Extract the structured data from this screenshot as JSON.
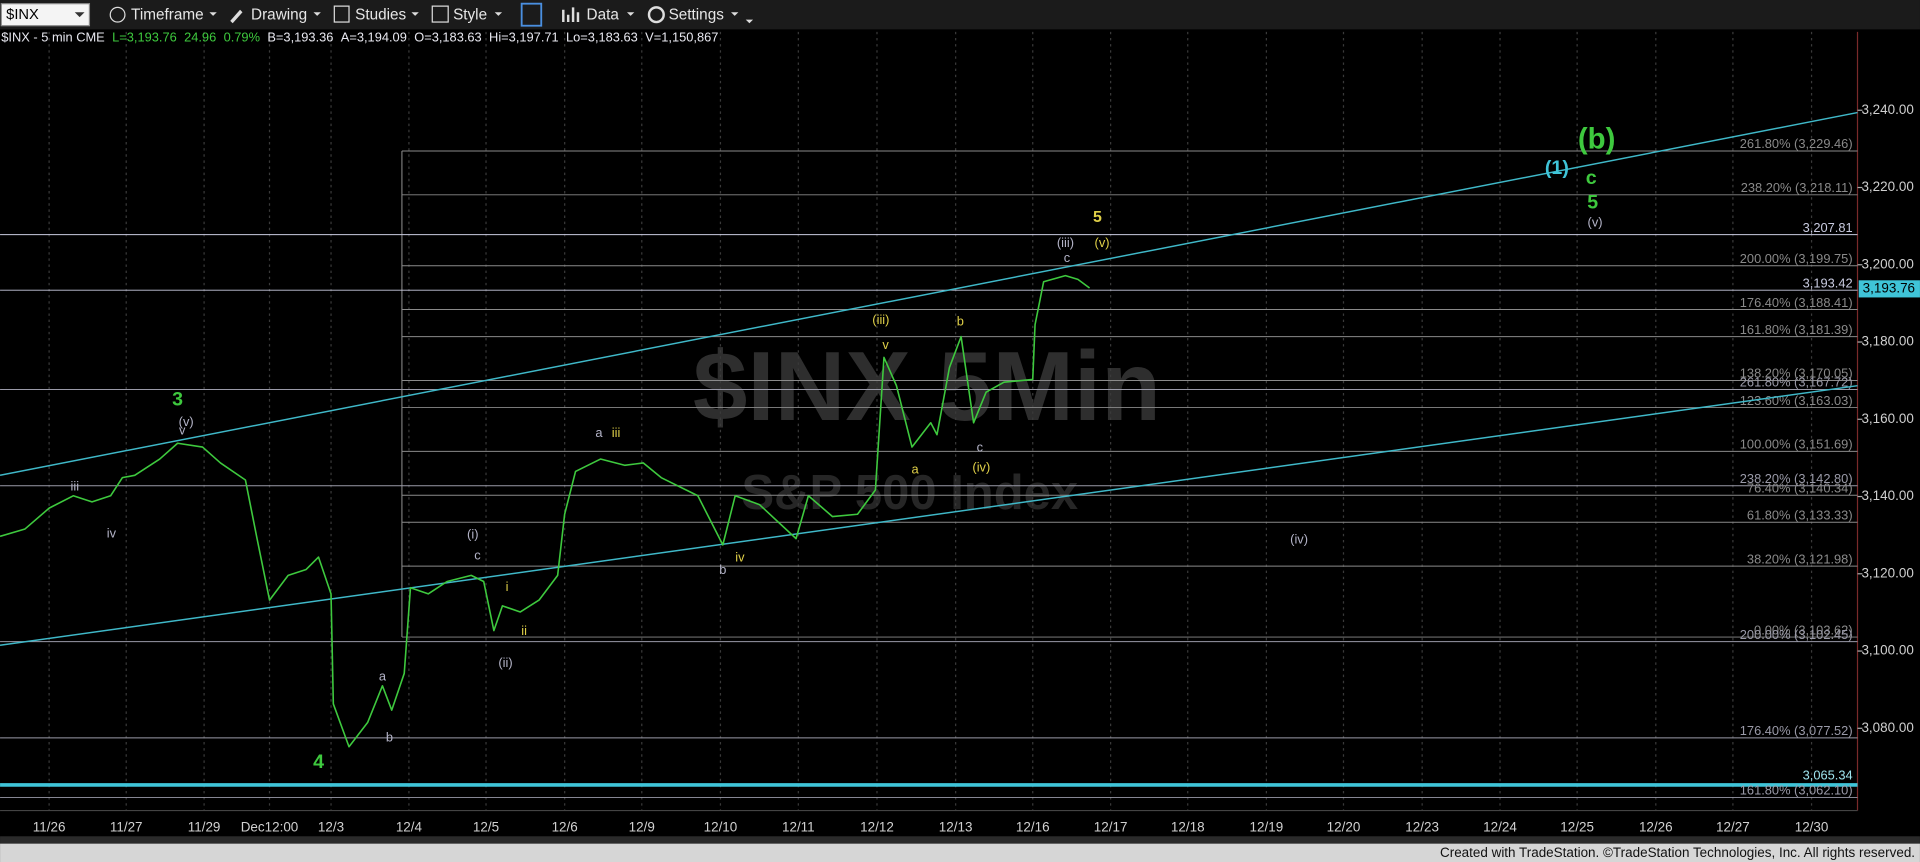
{
  "toolbar": {
    "symbol": "$INX",
    "items": [
      "Timeframe",
      "Drawing",
      "Studies",
      "Style",
      "Data",
      "Settings"
    ]
  },
  "status": [
    {
      "text": "$INX - 5 min CME",
      "color": "#e8e8f0"
    },
    {
      "text": "L=3,193.76",
      "color": "#3ec93e"
    },
    {
      "text": "24.96",
      "color": "#3ec93e"
    },
    {
      "text": "0.79%",
      "color": "#3ec93e"
    },
    {
      "text": "B=3,193.36",
      "color": "#e8e8f0"
    },
    {
      "text": "A=3,194.09",
      "color": "#e8e8f0"
    },
    {
      "text": "O=3,183.63",
      "color": "#e8e8f0"
    },
    {
      "text": "Hi=3,197.71",
      "color": "#e8e8f0"
    },
    {
      "text": "Lo=3,183.63",
      "color": "#e8e8f0"
    },
    {
      "text": "V=1,150,867",
      "color": "#e8e8f0"
    }
  ],
  "footer": "Created with TradeStation. ©TradeStation Technologies, Inc. All rights reserved.",
  "chart_data": {
    "type": "line",
    "watermark": {
      "title": "$INX 5Min",
      "subtitle": "S&P 500 Index"
    },
    "x": [
      -0.63,
      -0.31,
      0,
      0.31,
      0.55,
      0.79,
      0.94,
      1.1,
      1.42,
      1.65,
      1.97,
      2.2,
      2.52,
      2.67,
      2.83,
      3.07,
      3.3,
      3.46,
      3.62,
      3.65,
      3.85,
      4.09,
      4.28,
      4.4,
      4.56,
      4.64,
      4.87,
      5.11,
      5.42,
      5.58,
      5.71,
      5.82,
      6.05,
      6.29,
      6.53,
      6.62,
      6.76,
      7.08,
      7.39,
      7.63,
      7.86,
      8.33,
      8.65,
      8.81,
      9.12,
      9.59,
      9.75,
      10.06,
      10.38,
      10.61,
      10.72,
      10.88,
      11.08,
      11.32,
      11.4,
      11.56,
      11.71,
      11.87,
      12.03,
      12.26,
      12.63,
      12.66,
      12.77,
      13.05,
      13.21,
      13.36
    ],
    "series": [
      {
        "name": "$INX - 5 min CME",
        "color": "#3ec93e",
        "values": [
          3129.7,
          3131.6,
          3137.0,
          3140.2,
          3138.6,
          3140.2,
          3144.9,
          3145.5,
          3149.7,
          3153.8,
          3152.8,
          3148.7,
          3144.3,
          3129.1,
          3113.2,
          3119.6,
          3121.1,
          3124.3,
          3114.8,
          3086.3,
          3075.2,
          3081.5,
          3091.0,
          3084.7,
          3094.2,
          3116.4,
          3114.8,
          3118.0,
          3119.6,
          3118.0,
          3105.3,
          3111.7,
          3110.1,
          3113.2,
          3119.6,
          3135.4,
          3146.5,
          3149.7,
          3148.1,
          3148.7,
          3144.9,
          3140.2,
          3127.5,
          3140.2,
          3137.9,
          3129.1,
          3140.2,
          3134.8,
          3135.4,
          3141.7,
          3176.0,
          3168.7,
          3152.8,
          3159.1,
          3156.0,
          3173.4,
          3181.4,
          3159.1,
          3167.0,
          3169.6,
          3170.3,
          3184.5,
          3195.6,
          3197.2,
          3196.2,
          3194.0
        ]
      }
    ],
    "xlim": [
      -0.63,
      23.22
    ],
    "ylim": [
      3058.7,
      3260.3
    ],
    "xticks": [
      {
        "value": 0,
        "label": "11/26"
      },
      {
        "value": 0.99,
        "label": "11/27"
      },
      {
        "value": 1.99,
        "label": "11/29"
      },
      {
        "value": 2.83,
        "label": "Dec12:00"
      },
      {
        "value": 3.62,
        "label": "12/3"
      },
      {
        "value": 4.62,
        "label": "12/4"
      },
      {
        "value": 5.61,
        "label": "12/5"
      },
      {
        "value": 6.62,
        "label": "12/6"
      },
      {
        "value": 7.61,
        "label": "12/9"
      },
      {
        "value": 8.62,
        "label": "12/10"
      },
      {
        "value": 9.62,
        "label": "12/11"
      },
      {
        "value": 10.63,
        "label": "12/12"
      },
      {
        "value": 11.64,
        "label": "12/13"
      },
      {
        "value": 12.63,
        "label": "12/16"
      },
      {
        "value": 13.63,
        "label": "12/17"
      },
      {
        "value": 14.62,
        "label": "12/18"
      },
      {
        "value": 15.63,
        "label": "12/19"
      },
      {
        "value": 16.62,
        "label": "12/20"
      },
      {
        "value": 17.63,
        "label": "12/23"
      },
      {
        "value": 18.63,
        "label": "12/24"
      },
      {
        "value": 19.62,
        "label": "12/25"
      },
      {
        "value": 20.63,
        "label": "12/26"
      },
      {
        "value": 21.62,
        "label": "12/27"
      },
      {
        "value": 22.63,
        "label": "12/30"
      }
    ],
    "yticks": [
      {
        "value": 3080,
        "label": "3,080.00"
      },
      {
        "value": 3100,
        "label": "3,100.00"
      },
      {
        "value": 3120,
        "label": "3,120.00"
      },
      {
        "value": 3140,
        "label": "3,140.00"
      },
      {
        "value": 3160,
        "label": "3,160.00"
      },
      {
        "value": 3180,
        "label": "3,180.00"
      },
      {
        "value": 3200,
        "label": "3,200.00"
      },
      {
        "value": 3220,
        "label": "3,220.00"
      },
      {
        "value": 3240,
        "label": "3,240.00"
      }
    ],
    "xgrid": true,
    "last_price": {
      "value": 3193.76,
      "label": "3,193.76",
      "color": "#3fc4d8"
    },
    "levels": [
      {
        "label": "261.80% (3,229.46)",
        "value": 3229.46,
        "x0": 4.53,
        "color": "#8a8a8a"
      },
      {
        "label": "238.20% (3,218.11)",
        "value": 3218.11,
        "x0": 4.53,
        "color": "#8a8a8a"
      },
      {
        "label": "3,207.81",
        "value": 3207.81,
        "x0": -0.63,
        "color": "#c9cbe0"
      },
      {
        "label": "200.00% (3,199.75)",
        "value": 3199.75,
        "x0": 4.53,
        "color": "#8a8a8a"
      },
      {
        "label": "3,193.42",
        "value": 3193.42,
        "x0": -0.63,
        "color": "#c9cbe0"
      },
      {
        "label": "176.40% (3,188.41)",
        "value": 3188.41,
        "x0": 4.53,
        "color": "#8a8a8a"
      },
      {
        "label": "161.80% (3,181.39)",
        "value": 3181.39,
        "x0": 4.53,
        "color": "#8a8a8a"
      },
      {
        "label": "138.20% (3,170.05)",
        "value": 3170.05,
        "x0": 4.53,
        "color": "#8a8a8a"
      },
      {
        "label": "261.80% (3,167.72)",
        "value": 3167.72,
        "x0": -0.63,
        "color": "#9a9aa8"
      },
      {
        "label": "123.60% (3,163.03)",
        "value": 3163.03,
        "x0": 4.53,
        "color": "#8a8a8a"
      },
      {
        "label": "100.00% (3,151.69)",
        "value": 3151.69,
        "x0": 4.53,
        "color": "#8a8a8a"
      },
      {
        "label": "238.20% (3,142.80)",
        "value": 3142.8,
        "x0": -0.63,
        "color": "#9a9aa8"
      },
      {
        "label": "76.40% (3,140.34)",
        "value": 3140.34,
        "x0": 4.53,
        "color": "#8a8a8a"
      },
      {
        "label": "61.80% (3,133.33)",
        "value": 3133.33,
        "x0": 4.53,
        "color": "#8a8a8a"
      },
      {
        "label": "38.20% (3,121.98)",
        "value": 3121.98,
        "x0": 4.53,
        "color": "#8a8a8a"
      },
      {
        "label": "0.00% (3,103.62)",
        "value": 3103.62,
        "x0": 4.53,
        "color": "#8a8a8a"
      },
      {
        "label": "200.00% (3,102.45)",
        "value": 3102.45,
        "x0": -0.63,
        "color": "#9a9aa8"
      },
      {
        "label": "176.40% (3,077.52)",
        "value": 3077.52,
        "x0": -0.63,
        "color": "#9a9aa8"
      },
      {
        "label": "3,065.34",
        "value": 3065.34,
        "x0": -0.63,
        "color": "#3fc4d8"
      },
      {
        "label": "161.80% (3,062.10)",
        "value": 3062.1,
        "x0": -0.63,
        "color": "#9a9aa8"
      }
    ],
    "trendlines": [
      {
        "x": [
          -0.63,
          23.22
        ],
        "y": [
          3145.5,
          3239.4
        ],
        "color": "#3fb8c8"
      },
      {
        "x": [
          -0.63,
          23.22
        ],
        "y": [
          3101.5,
          3168.7
        ],
        "color": "#3fb8c8"
      }
    ],
    "wave_labels": [
      {
        "text": "3",
        "x": 1.65,
        "y": 3164.9,
        "color": "#3ec93e"
      },
      {
        "text": "(v)",
        "x": 1.76,
        "y": 3159.2,
        "color": "#b4b4c8"
      },
      {
        "text": "v",
        "x": 1.71,
        "y": 3157.0,
        "color": "#b4b4c8"
      },
      {
        "text": "iii",
        "x": 0.33,
        "y": 3142.4,
        "color": "#b4b4c8"
      },
      {
        "text": "iv",
        "x": 0.8,
        "y": 3130.3,
        "color": "#b4b4c8"
      },
      {
        "text": "4",
        "x": 3.46,
        "y": 3071.1,
        "color": "#3ec93e"
      },
      {
        "text": "a",
        "x": 4.28,
        "y": 3093.2,
        "color": "#b4b4c8"
      },
      {
        "text": "b",
        "x": 4.37,
        "y": 3077.4,
        "color": "#b4b4c8"
      },
      {
        "text": "(i)",
        "x": 5.44,
        "y": 3130.0,
        "color": "#b4b4c8"
      },
      {
        "text": "c",
        "x": 5.5,
        "y": 3124.6,
        "color": "#b4b4c8"
      },
      {
        "text": "i",
        "x": 5.88,
        "y": 3116.4,
        "color": "#e0d048"
      },
      {
        "text": "ii",
        "x": 6.1,
        "y": 3105.0,
        "color": "#e0d048"
      },
      {
        "text": "(ii)",
        "x": 5.86,
        "y": 3096.7,
        "color": "#b4b4c8"
      },
      {
        "text": "a",
        "x": 7.06,
        "y": 3156.3,
        "color": "#b4b4c8"
      },
      {
        "text": "iii",
        "x": 7.28,
        "y": 3156.3,
        "color": "#e0d048"
      },
      {
        "text": "b",
        "x": 8.65,
        "y": 3120.8,
        "color": "#b4b4c8"
      },
      {
        "text": "iv",
        "x": 8.87,
        "y": 3124.0,
        "color": "#e0d048"
      },
      {
        "text": "(iii)",
        "x": 10.68,
        "y": 3185.5,
        "color": "#e0d048"
      },
      {
        "text": "v",
        "x": 10.74,
        "y": 3179.1,
        "color": "#e0d048"
      },
      {
        "text": "a",
        "x": 11.12,
        "y": 3146.8,
        "color": "#e0d048"
      },
      {
        "text": "b",
        "x": 11.7,
        "y": 3185.2,
        "color": "#e0d048"
      },
      {
        "text": "c",
        "x": 11.95,
        "y": 3152.5,
        "color": "#b4b4c8"
      },
      {
        "text": "(iv)",
        "x": 11.97,
        "y": 3147.4,
        "color": "#e0d048"
      },
      {
        "text": "(iii)",
        "x": 13.05,
        "y": 3205.5,
        "color": "#b4b4c8"
      },
      {
        "text": "c",
        "x": 13.07,
        "y": 3201.6,
        "color": "#b4b4c8"
      },
      {
        "text": "(v)",
        "x": 13.52,
        "y": 3205.5,
        "color": "#e0d048"
      },
      {
        "text": "5",
        "x": 13.46,
        "y": 3212.1,
        "color": "#e0d048"
      },
      {
        "text": "(iv)",
        "x": 16.05,
        "y": 3128.7,
        "color": "#b4b4c8"
      },
      {
        "text": "(1)",
        "x": 19.36,
        "y": 3224.8,
        "color": "#3fc4d8"
      },
      {
        "text": "(b)",
        "x": 19.87,
        "y": 3232.1,
        "color": "#3ec93e"
      },
      {
        "text": "c",
        "x": 19.8,
        "y": 3222.3,
        "color": "#3ec93e"
      },
      {
        "text": "5",
        "x": 19.82,
        "y": 3215.9,
        "color": "#3ec93e"
      },
      {
        "text": "(v)",
        "x": 19.85,
        "y": 3210.8,
        "color": "#b4b4c8"
      }
    ]
  }
}
